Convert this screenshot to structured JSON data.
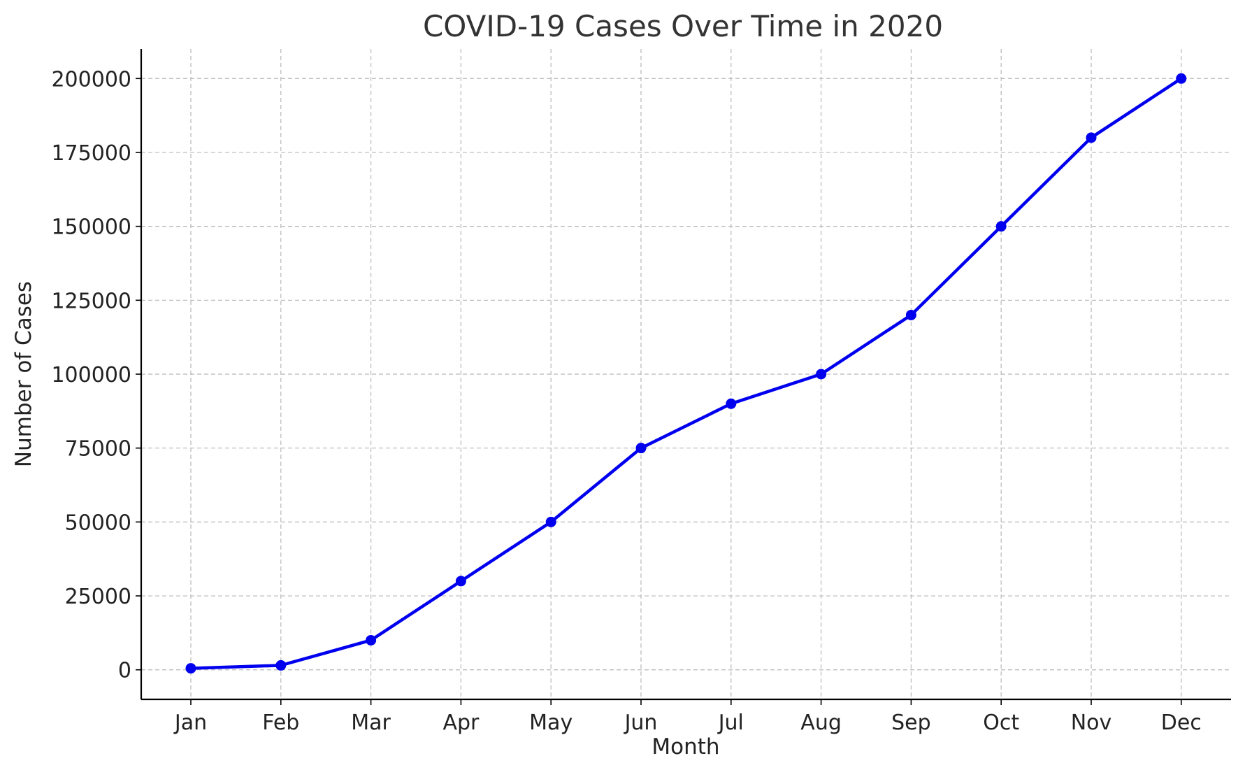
{
  "chart_data": {
    "type": "line",
    "title": "COVID-19 Cases Over Time in 2020",
    "xlabel": "Month",
    "ylabel": "Number of Cases",
    "categories": [
      "Jan",
      "Feb",
      "Mar",
      "Apr",
      "May",
      "Jun",
      "Jul",
      "Aug",
      "Sep",
      "Oct",
      "Nov",
      "Dec"
    ],
    "series": [
      {
        "values": [
          500,
          1500,
          10000,
          30000,
          50000,
          75000,
          90000,
          100000,
          120000,
          150000,
          180000,
          200000
        ]
      }
    ],
    "yticks": [
      0,
      25000,
      50000,
      75000,
      100000,
      125000,
      150000,
      175000,
      200000
    ],
    "ylim": [
      -10000,
      210000
    ],
    "grid": true,
    "line_color": "#0000ee",
    "marker": "circle"
  }
}
